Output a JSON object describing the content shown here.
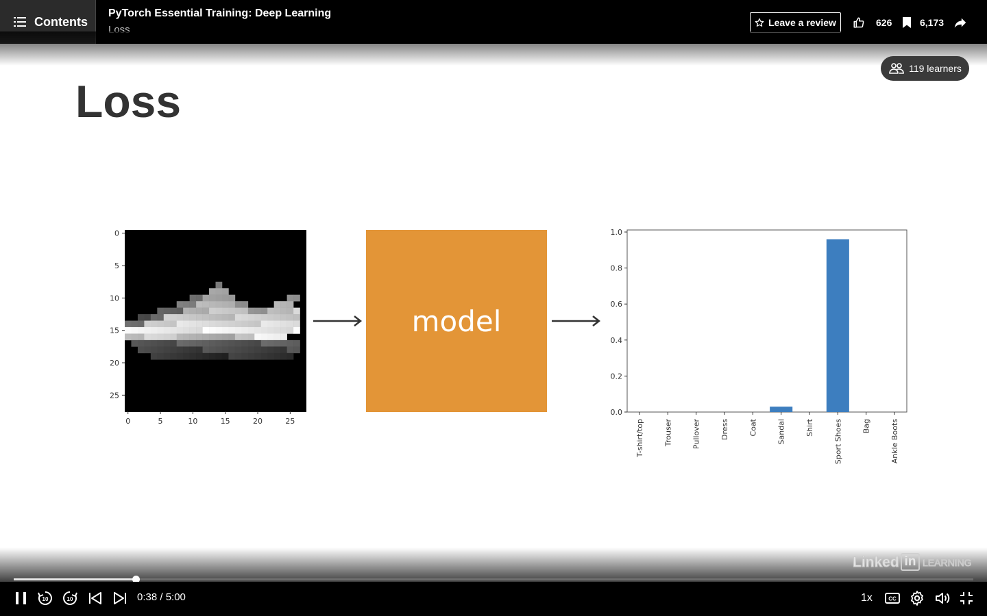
{
  "header": {
    "contents_label": "Contents",
    "course_title": "PyTorch Essential Training: Deep Learning",
    "lesson_title": "Loss",
    "review_label": "Leave a review",
    "likes": "626",
    "saves": "6,173"
  },
  "learners_badge": "119 learners",
  "slide": {
    "title": "Loss",
    "model_label": "model",
    "input_image_axes": {
      "x_ticks": [
        "0",
        "5",
        "10",
        "15",
        "20",
        "25"
      ],
      "y_ticks": [
        "0",
        "5",
        "10",
        "15",
        "20",
        "25"
      ]
    }
  },
  "chart_data": {
    "type": "bar",
    "categories": [
      "T-shirt/top",
      "Trouser",
      "Pullover",
      "Dress",
      "Coat",
      "Sandal",
      "Shirt",
      "Sport Shoes",
      "Bag",
      "Ankle Boots"
    ],
    "values": [
      0,
      0,
      0,
      0,
      0,
      0.03,
      0,
      0.96,
      0,
      0
    ],
    "ylim": [
      0,
      1.0
    ],
    "y_ticks": [
      "0.0",
      "0.2",
      "0.4",
      "0.6",
      "0.8",
      "1.0"
    ],
    "bar_color": "#3d7ebf",
    "grid": false
  },
  "player": {
    "current_time": "0:38",
    "duration": "5:00",
    "time_text": "0:38 / 5:00",
    "progress": 0.127,
    "speed": "1x",
    "watermark_brand": "Linked",
    "watermark_in": "in",
    "watermark_product": "LEARNING"
  },
  "icons": [
    "list-icon",
    "star-icon",
    "thumbs-up-icon",
    "bookmark-icon",
    "share-icon",
    "people-icon",
    "pause-icon",
    "rewind-10-icon",
    "forward-10-icon",
    "previous-icon",
    "next-icon",
    "closed-captions-icon",
    "settings-icon",
    "volume-icon",
    "exit-fullscreen-icon"
  ]
}
